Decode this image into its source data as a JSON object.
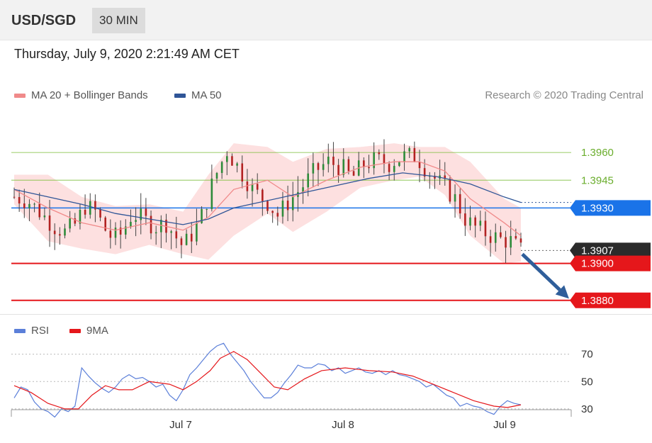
{
  "header": {
    "pair": "USD/SGD",
    "timeframe": "30 MIN",
    "datetime": "Thursday, July 9, 2020 2:21:49 AM CET"
  },
  "legend": {
    "ma20": "MA 20 + Bollinger Bands",
    "ma50": "MA 50",
    "credit": "Research © 2020 Trading Central",
    "rsi": "RSI",
    "rsi_ma": "9MA"
  },
  "colors": {
    "ma20": "#f08a8a",
    "ma50": "#2f5597",
    "band_fill": "#fde0e0",
    "resistance": "#7fbf3f",
    "pivot": "#1a73e8",
    "support": "#e5171b",
    "last": "#2b2b2b",
    "arrow": "#2f5e9a",
    "rsi": "#5b7fd9",
    "rsi_ma": "#e5171b"
  },
  "chart_data": [
    {
      "type": "candlestick",
      "title": "USD/SGD",
      "x_labels": [
        "Jul 7",
        "Jul 8",
        "Jul 9"
      ],
      "ylim": [
        1.3873,
        1.3985
      ],
      "levels": [
        {
          "label": "1.3960",
          "value": 1.396,
          "kind": "resistance"
        },
        {
          "label": "1.3945",
          "value": 1.3945,
          "kind": "resistance"
        },
        {
          "label": "1.3930",
          "value": 1.393,
          "kind": "pivot"
        },
        {
          "label": "1.3907",
          "value": 1.3907,
          "kind": "last"
        },
        {
          "label": "1.3900",
          "value": 1.39,
          "kind": "support"
        },
        {
          "label": "1.3880",
          "value": 1.388,
          "kind": "support"
        }
      ],
      "price_path": [
        [
          0,
          1.3936
        ],
        [
          8,
          1.3934
        ],
        [
          16,
          1.3927
        ],
        [
          24,
          1.392
        ],
        [
          30,
          1.3917
        ],
        [
          36,
          1.3921
        ],
        [
          42,
          1.3931
        ],
        [
          48,
          1.3928
        ],
        [
          56,
          1.3915
        ],
        [
          62,
          1.3914
        ],
        [
          70,
          1.3927
        ],
        [
          76,
          1.3924
        ],
        [
          84,
          1.392
        ],
        [
          90,
          1.3922
        ],
        [
          96,
          1.3914
        ],
        [
          100,
          1.3909
        ],
        [
          106,
          1.3917
        ],
        [
          110,
          1.3923
        ],
        [
          118,
          1.3945
        ],
        [
          126,
          1.3961
        ],
        [
          134,
          1.395
        ],
        [
          142,
          1.3939
        ],
        [
          150,
          1.3933
        ],
        [
          156,
          1.3926
        ],
        [
          162,
          1.3933
        ],
        [
          170,
          1.3941
        ],
        [
          178,
          1.395
        ],
        [
          186,
          1.3955
        ],
        [
          194,
          1.3952
        ],
        [
          200,
          1.3946
        ],
        [
          206,
          1.3953
        ],
        [
          214,
          1.3956
        ],
        [
          222,
          1.3954
        ],
        [
          230,
          1.3958
        ],
        [
          238,
          1.3958
        ],
        [
          244,
          1.3951
        ],
        [
          250,
          1.3945
        ],
        [
          256,
          1.394
        ],
        [
          262,
          1.3934
        ],
        [
          266,
          1.3925
        ],
        [
          272,
          1.392
        ],
        [
          280,
          1.3916
        ],
        [
          288,
          1.3913
        ],
        [
          294,
          1.3912
        ],
        [
          300,
          1.3907
        ]
      ],
      "ma20": [
        [
          0,
          1.394
        ],
        [
          20,
          1.393
        ],
        [
          40,
          1.3922
        ],
        [
          60,
          1.3918
        ],
        [
          80,
          1.3922
        ],
        [
          100,
          1.3918
        ],
        [
          115,
          1.3925
        ],
        [
          130,
          1.394
        ],
        [
          150,
          1.3945
        ],
        [
          165,
          1.3936
        ],
        [
          185,
          1.3945
        ],
        [
          205,
          1.3952
        ],
        [
          225,
          1.3955
        ],
        [
          240,
          1.3955
        ],
        [
          255,
          1.395
        ],
        [
          270,
          1.3935
        ],
        [
          290,
          1.3922
        ],
        [
          300,
          1.3915
        ]
      ],
      "ma50": [
        [
          0,
          1.394
        ],
        [
          20,
          1.3936
        ],
        [
          40,
          1.3932
        ],
        [
          60,
          1.3927
        ],
        [
          80,
          1.3924
        ],
        [
          100,
          1.3921
        ],
        [
          115,
          1.3924
        ],
        [
          130,
          1.393
        ],
        [
          150,
          1.3934
        ],
        [
          170,
          1.3938
        ],
        [
          190,
          1.3942
        ],
        [
          210,
          1.3946
        ],
        [
          230,
          1.3949
        ],
        [
          250,
          1.3947
        ],
        [
          270,
          1.3943
        ],
        [
          290,
          1.3936
        ],
        [
          300,
          1.3933
        ]
      ],
      "bb_upper": [
        [
          0,
          1.3948
        ],
        [
          20,
          1.3948
        ],
        [
          40,
          1.3936
        ],
        [
          60,
          1.3931
        ],
        [
          80,
          1.3932
        ],
        [
          100,
          1.3928
        ],
        [
          115,
          1.3948
        ],
        [
          130,
          1.3965
        ],
        [
          150,
          1.3963
        ],
        [
          165,
          1.3955
        ],
        [
          185,
          1.3962
        ],
        [
          205,
          1.3963
        ],
        [
          225,
          1.3965
        ],
        [
          240,
          1.3963
        ],
        [
          255,
          1.3963
        ],
        [
          270,
          1.3955
        ],
        [
          290,
          1.3935
        ],
        [
          300,
          1.393
        ]
      ],
      "bb_lower": [
        [
          0,
          1.3932
        ],
        [
          20,
          1.3912
        ],
        [
          40,
          1.3908
        ],
        [
          60,
          1.3905
        ],
        [
          80,
          1.391
        ],
        [
          100,
          1.3905
        ],
        [
          115,
          1.3902
        ],
        [
          130,
          1.3915
        ],
        [
          150,
          1.3927
        ],
        [
          165,
          1.3917
        ],
        [
          185,
          1.3928
        ],
        [
          205,
          1.3941
        ],
        [
          225,
          1.3945
        ],
        [
          240,
          1.3947
        ],
        [
          255,
          1.3937
        ],
        [
          270,
          1.3915
        ],
        [
          290,
          1.39
        ],
        [
          300,
          1.3901
        ]
      ]
    },
    {
      "type": "line",
      "title": "RSI",
      "yticks": [
        70,
        50,
        30
      ],
      "ylim": [
        18,
        88
      ],
      "series": [
        {
          "name": "RSI",
          "values": [
            [
              0,
              38
            ],
            [
              4,
              46
            ],
            [
              8,
              44
            ],
            [
              12,
              35
            ],
            [
              16,
              30
            ],
            [
              20,
              28
            ],
            [
              24,
              24
            ],
            [
              28,
              30
            ],
            [
              32,
              28
            ],
            [
              36,
              32
            ],
            [
              40,
              60
            ],
            [
              44,
              54
            ],
            [
              48,
              49
            ],
            [
              52,
              45
            ],
            [
              56,
              42
            ],
            [
              60,
              46
            ],
            [
              64,
              52
            ],
            [
              68,
              55
            ],
            [
              72,
              52
            ],
            [
              76,
              53
            ],
            [
              80,
              50
            ],
            [
              84,
              46
            ],
            [
              88,
              48
            ],
            [
              92,
              40
            ],
            [
              96,
              36
            ],
            [
              100,
              44
            ],
            [
              104,
              55
            ],
            [
              108,
              60
            ],
            [
              112,
              66
            ],
            [
              116,
              72
            ],
            [
              120,
              76
            ],
            [
              124,
              78
            ],
            [
              128,
              70
            ],
            [
              132,
              64
            ],
            [
              136,
              58
            ],
            [
              140,
              50
            ],
            [
              144,
              44
            ],
            [
              148,
              38
            ],
            [
              152,
              38
            ],
            [
              156,
              42
            ],
            [
              160,
              49
            ],
            [
              164,
              55
            ],
            [
              168,
              62
            ],
            [
              172,
              60
            ],
            [
              176,
              60
            ],
            [
              180,
              63
            ],
            [
              184,
              62
            ],
            [
              188,
              58
            ],
            [
              192,
              60
            ],
            [
              196,
              56
            ],
            [
              200,
              58
            ],
            [
              204,
              60
            ],
            [
              208,
              57
            ],
            [
              212,
              56
            ],
            [
              216,
              58
            ],
            [
              220,
              55
            ],
            [
              224,
              58
            ],
            [
              228,
              55
            ],
            [
              232,
              54
            ],
            [
              236,
              52
            ],
            [
              240,
              50
            ],
            [
              244,
              46
            ],
            [
              248,
              48
            ],
            [
              252,
              44
            ],
            [
              256,
              40
            ],
            [
              260,
              38
            ],
            [
              264,
              32
            ],
            [
              268,
              34
            ],
            [
              272,
              32
            ],
            [
              276,
              31
            ],
            [
              280,
              28
            ],
            [
              284,
              26
            ],
            [
              288,
              32
            ],
            [
              292,
              36
            ],
            [
              296,
              34
            ],
            [
              300,
              33
            ]
          ]
        },
        {
          "name": "9MA",
          "values": [
            [
              0,
              47
            ],
            [
              10,
              42
            ],
            [
              20,
              34
            ],
            [
              30,
              30
            ],
            [
              38,
              30
            ],
            [
              46,
              40
            ],
            [
              54,
              47
            ],
            [
              62,
              44
            ],
            [
              70,
              44
            ],
            [
              80,
              50
            ],
            [
              92,
              48
            ],
            [
              100,
              44
            ],
            [
              108,
              50
            ],
            [
              116,
              58
            ],
            [
              122,
              67
            ],
            [
              130,
              72
            ],
            [
              138,
              66
            ],
            [
              146,
              56
            ],
            [
              154,
              46
            ],
            [
              162,
              44
            ],
            [
              172,
              52
            ],
            [
              182,
              58
            ],
            [
              196,
              60
            ],
            [
              210,
              58
            ],
            [
              224,
              57
            ],
            [
              236,
              54
            ],
            [
              248,
              48
            ],
            [
              260,
              42
            ],
            [
              272,
              36
            ],
            [
              284,
              32
            ],
            [
              292,
              31
            ],
            [
              300,
              33
            ]
          ]
        }
      ]
    }
  ]
}
